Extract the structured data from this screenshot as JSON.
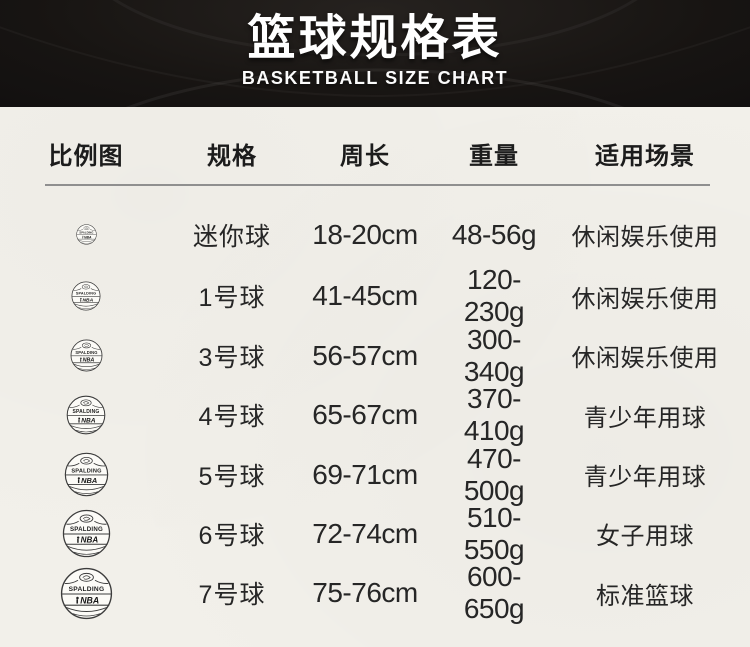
{
  "banner": {
    "title": "篮球规格表",
    "subtitle": "BASKETBALL SIZE CHART"
  },
  "table": {
    "headers": [
      "比例图",
      "规格",
      "周长",
      "重量",
      "适用场景"
    ],
    "rows": [
      {
        "spec": "迷你球",
        "circumference": "18-20cm",
        "weight": "48-56g",
        "usage": "休闲娱乐使用",
        "ball_diameter": 21
      },
      {
        "spec": "1号球",
        "circumference": "41-45cm",
        "weight": "120-230g",
        "usage": "休闲娱乐使用",
        "ball_diameter": 30
      },
      {
        "spec": "3号球",
        "circumference": "56-57cm",
        "weight": "300-340g",
        "usage": "休闲娱乐使用",
        "ball_diameter": 33
      },
      {
        "spec": "4号球",
        "circumference": "65-67cm",
        "weight": "370-410g",
        "usage": "青少年用球",
        "ball_diameter": 40
      },
      {
        "spec": "5号球",
        "circumference": "69-71cm",
        "weight": "470-500g",
        "usage": "青少年用球",
        "ball_diameter": 45
      },
      {
        "spec": "6号球",
        "circumference": "72-74cm",
        "weight": "510-550g",
        "usage": "女子用球",
        "ball_diameter": 49
      },
      {
        "spec": "7号球",
        "circumference": "75-76cm",
        "weight": "600-650g",
        "usage": "标准篮球",
        "ball_diameter": 53
      }
    ]
  },
  "ball": {
    "brand": "SPALDING",
    "league": "NBA"
  },
  "colors": {
    "banner_bg": "#171412",
    "paper_bg": "#f2f0ea",
    "text": "#262626",
    "divider": "#8f8f8f",
    "ball_stroke": "#3c3c3c"
  }
}
